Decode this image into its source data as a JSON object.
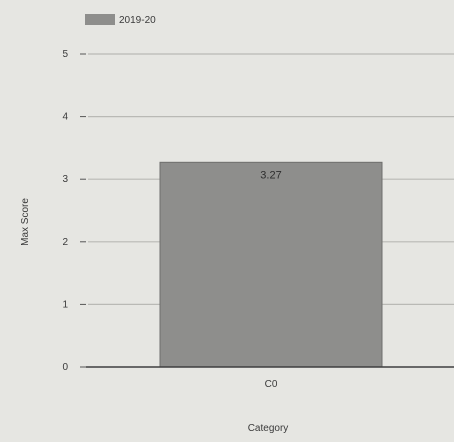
{
  "chart_data": {
    "type": "bar",
    "title": "",
    "xlabel": "Category",
    "ylabel": "Max Score",
    "categories": [
      "C0"
    ],
    "series": [
      {
        "name": "2019-20",
        "values": [
          3.27
        ],
        "color": "#8e8e8c"
      }
    ],
    "data_labels": [
      "3.27"
    ],
    "ylim": [
      0,
      5
    ],
    "yticks": [
      0,
      1,
      2,
      3,
      4,
      5
    ],
    "grid": true,
    "legend_position": "top-left"
  }
}
